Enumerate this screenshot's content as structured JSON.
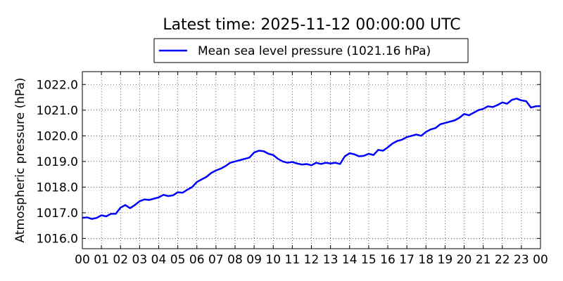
{
  "title": "Latest time: 2025-11-12 00:00:00 UTC",
  "chart_data": {
    "type": "line",
    "title": "Latest time: 2025-11-12 00:00:00 UTC",
    "xlabel": "",
    "ylabel": "Atmospheric pressure (hPa)",
    "xlim": [
      0,
      24
    ],
    "ylim": [
      1015.6,
      1022.5
    ],
    "x_ticks": [
      0,
      1,
      2,
      3,
      4,
      5,
      6,
      7,
      8,
      9,
      10,
      11,
      12,
      13,
      14,
      15,
      16,
      17,
      18,
      19,
      20,
      21,
      22,
      23,
      24
    ],
    "x_tick_labels": [
      "00",
      "01",
      "02",
      "03",
      "04",
      "05",
      "06",
      "07",
      "08",
      "09",
      "10",
      "11",
      "12",
      "13",
      "14",
      "15",
      "16",
      "17",
      "18",
      "19",
      "20",
      "21",
      "22",
      "23",
      "00"
    ],
    "y_ticks": [
      1016.0,
      1017.0,
      1018.0,
      1019.0,
      1020.0,
      1021.0,
      1022.0
    ],
    "y_tick_labels": [
      "1016.0",
      "1017.0",
      "1018.0",
      "1019.0",
      "1020.0",
      "1021.0",
      "1022.0"
    ],
    "grid": true,
    "legend_position": "top-center, above plot",
    "series": [
      {
        "name": "Mean sea level pressure (1021.16 hPa)",
        "color": "#0000ff",
        "x": [
          0,
          0.25,
          0.5,
          0.75,
          1,
          1.25,
          1.5,
          1.75,
          2,
          2.25,
          2.5,
          2.75,
          3,
          3.25,
          3.5,
          3.75,
          4,
          4.25,
          4.5,
          4.75,
          5,
          5.25,
          5.5,
          5.75,
          6,
          6.25,
          6.5,
          6.75,
          7,
          7.25,
          7.5,
          7.75,
          8,
          8.25,
          8.5,
          8.75,
          9,
          9.25,
          9.5,
          9.75,
          10,
          10.25,
          10.5,
          10.75,
          11,
          11.25,
          11.5,
          11.75,
          12,
          12.25,
          12.5,
          12.75,
          13,
          13.25,
          13.5,
          13.75,
          14,
          14.25,
          14.5,
          14.75,
          15,
          15.25,
          15.5,
          15.75,
          16,
          16.25,
          16.5,
          16.75,
          17,
          17.25,
          17.5,
          17.75,
          18,
          18.25,
          18.5,
          18.75,
          19,
          19.25,
          19.5,
          19.75,
          20,
          20.25,
          20.5,
          20.75,
          21,
          21.25,
          21.5,
          21.75,
          22,
          22.25,
          22.5,
          22.75,
          23,
          23.25,
          23.5,
          23.75,
          24
        ],
        "y": [
          1016.8,
          1016.82,
          1016.76,
          1016.8,
          1016.9,
          1016.86,
          1016.96,
          1016.96,
          1017.2,
          1017.3,
          1017.18,
          1017.3,
          1017.45,
          1017.52,
          1017.5,
          1017.55,
          1017.6,
          1017.7,
          1017.65,
          1017.68,
          1017.8,
          1017.78,
          1017.9,
          1018.0,
          1018.2,
          1018.3,
          1018.4,
          1018.55,
          1018.65,
          1018.72,
          1018.82,
          1018.95,
          1019.0,
          1019.05,
          1019.1,
          1019.15,
          1019.35,
          1019.42,
          1019.4,
          1019.3,
          1019.25,
          1019.1,
          1019.0,
          1018.95,
          1018.98,
          1018.92,
          1018.88,
          1018.9,
          1018.85,
          1018.95,
          1018.9,
          1018.95,
          1018.92,
          1018.95,
          1018.9,
          1019.2,
          1019.32,
          1019.28,
          1019.2,
          1019.22,
          1019.3,
          1019.25,
          1019.45,
          1019.42,
          1019.55,
          1019.7,
          1019.8,
          1019.85,
          1019.95,
          1020.0,
          1020.05,
          1020.0,
          1020.15,
          1020.25,
          1020.3,
          1020.45,
          1020.5,
          1020.55,
          1020.6,
          1020.7,
          1020.85,
          1020.8,
          1020.9,
          1021.0,
          1021.05,
          1021.15,
          1021.12,
          1021.2,
          1021.3,
          1021.25,
          1021.4,
          1021.45,
          1021.38,
          1021.35,
          1021.1,
          1021.15,
          1021.16
        ]
      }
    ]
  }
}
